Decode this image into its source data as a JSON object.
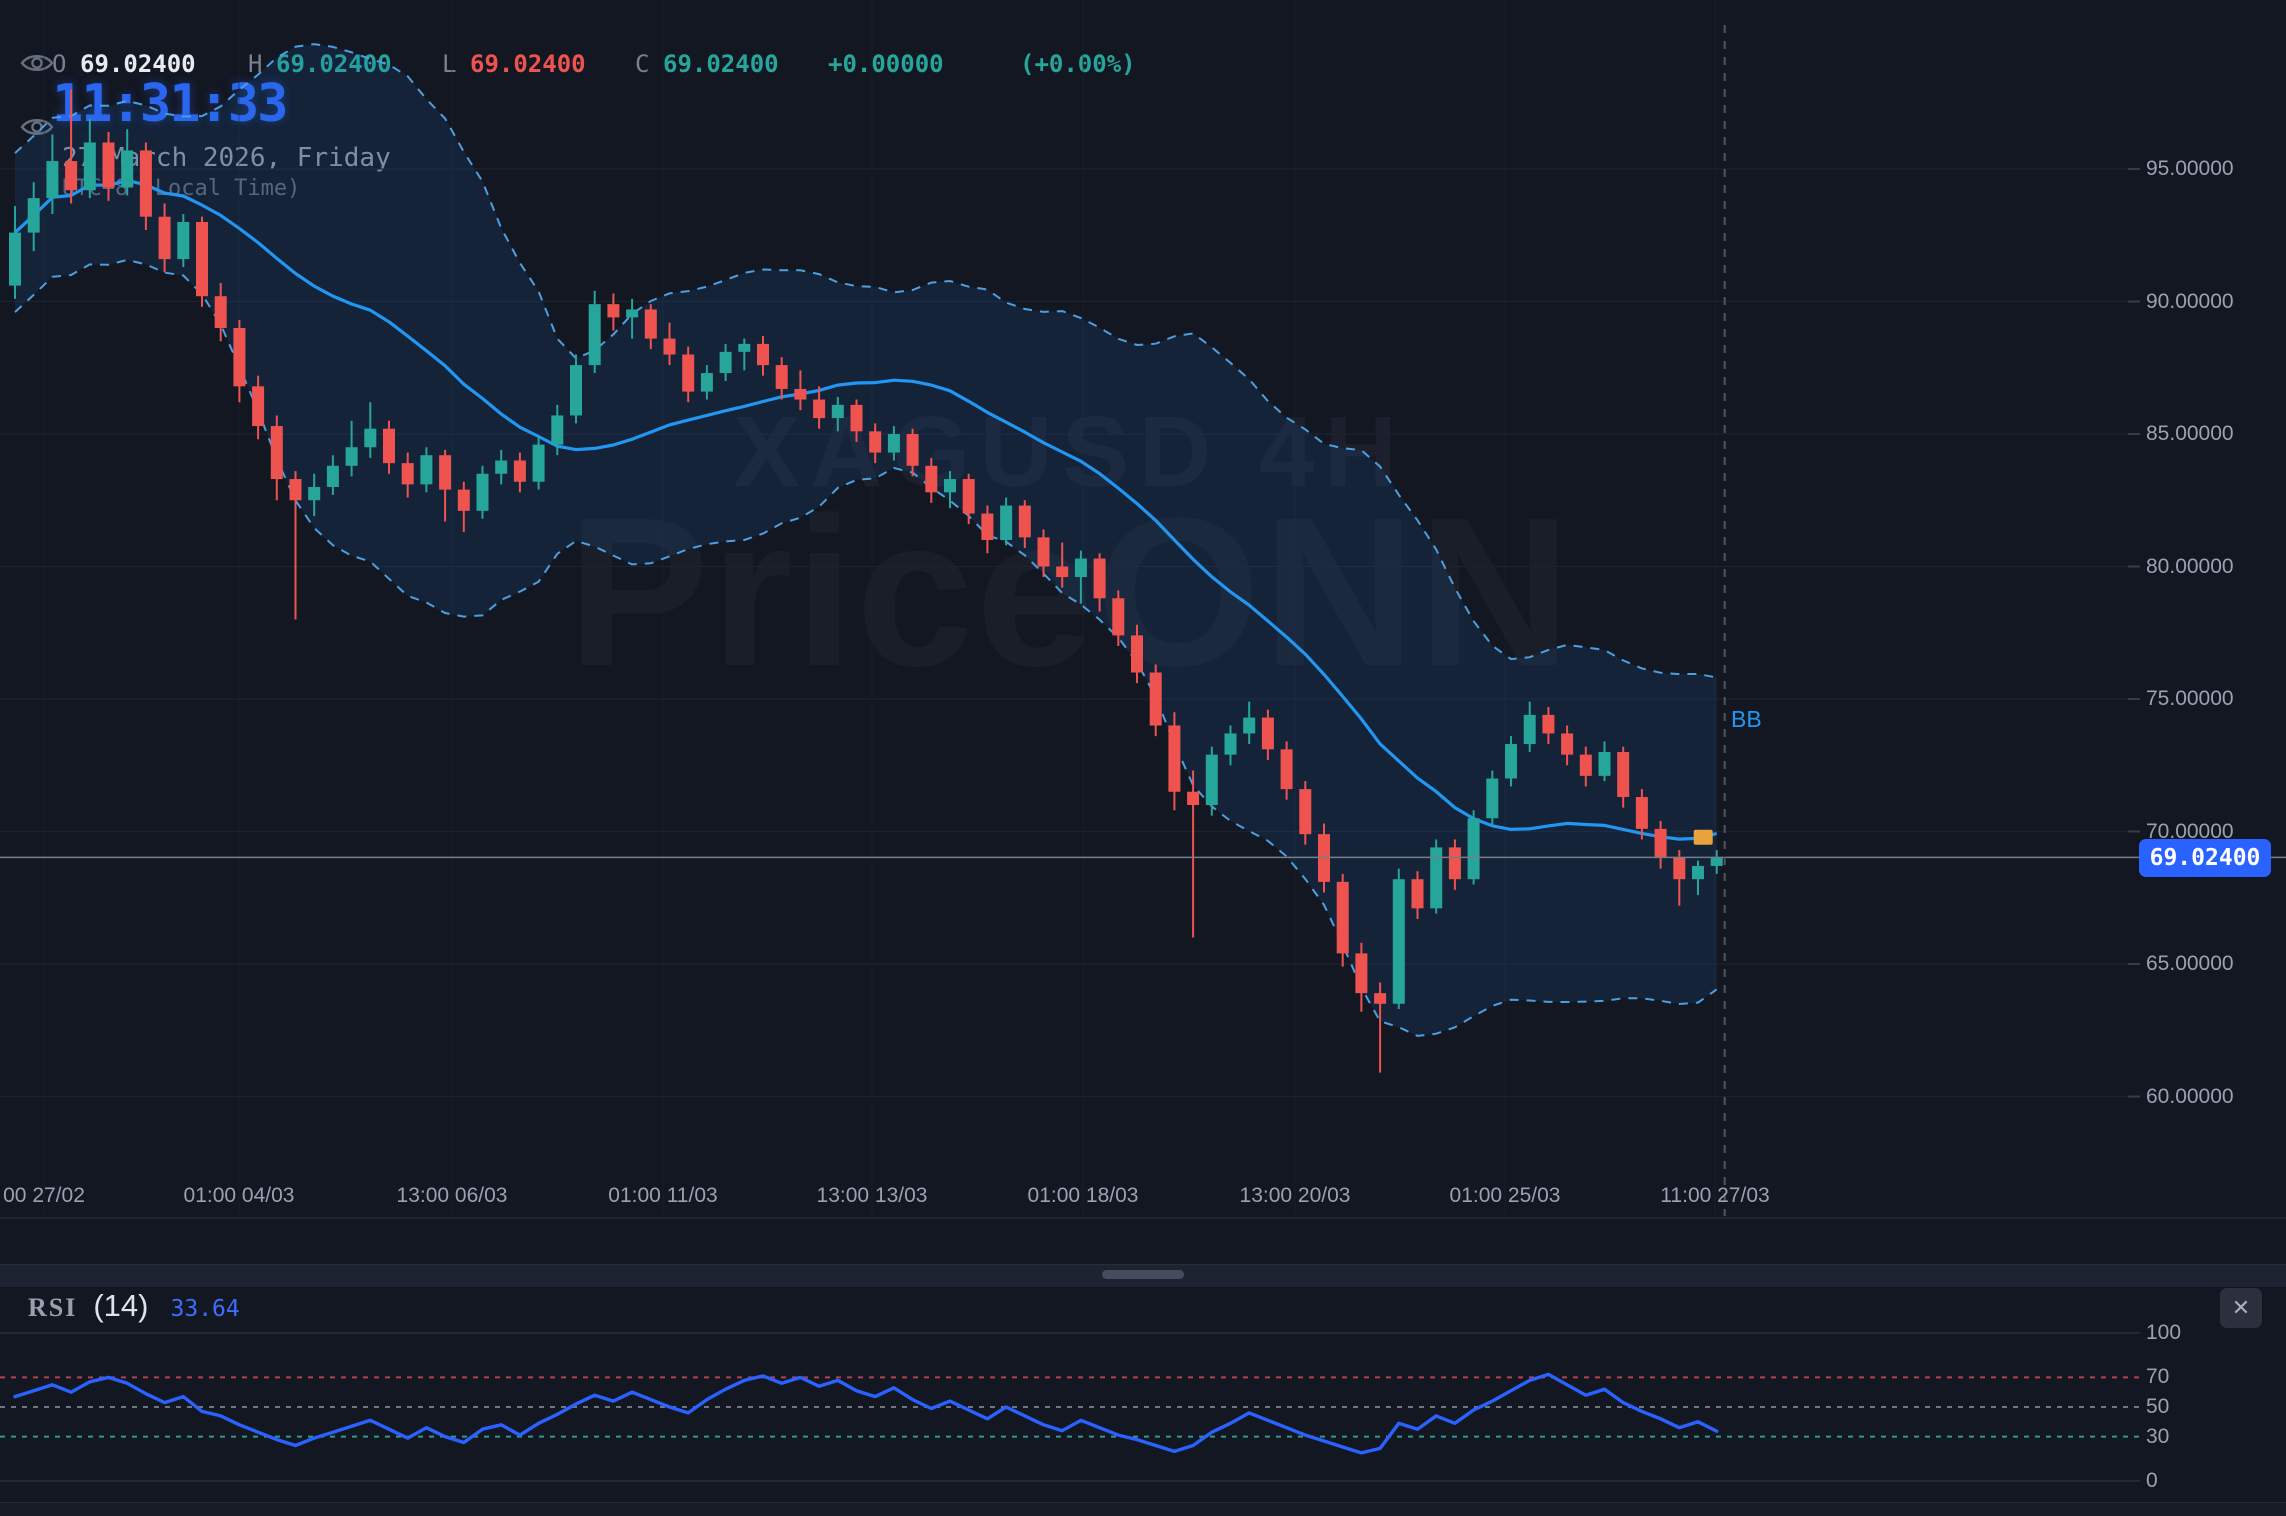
{
  "legend": {
    "open_label": "O",
    "open": "69.02400",
    "high_label": "H",
    "high": "69.02400",
    "low_label": "L",
    "low": "69.02400",
    "close_label": "C",
    "close": "69.02400",
    "change": "+0.00000",
    "change_pct": "(+0.00%)"
  },
  "clock": {
    "time": "11:31:33",
    "date": "27 March 2026, Friday",
    "timezone": "UTC+8 (Local Time)"
  },
  "watermark": {
    "symbol_tf": "XAGUSD 4H",
    "brand": "PriceONN"
  },
  "colors": {
    "background": "#131722",
    "up": "#26a69a",
    "down": "#ef5350",
    "bb_mid": "#2196f3",
    "bb_outer": "#4e9fe0",
    "bb_fill": "rgba(33,118,210,0.13)",
    "rsi_line": "#2962ff",
    "accent_badge": "#2962ff",
    "marker": "#e8a33d",
    "grid": "#1c2230",
    "axis_text": "#9aa2b1"
  },
  "chart_data": {
    "type": "candlestick",
    "symbol": "XAGUSD",
    "timeframe": "4H",
    "title": "XAGUSD 4H",
    "price_axis": {
      "ticks": [
        95,
        90,
        85,
        80,
        75,
        70,
        65,
        60
      ],
      "labels": [
        "95.00000",
        "90.00000",
        "85.00000",
        "80.00000",
        "75.00000",
        "70.00000",
        "65.00000",
        "60.00000"
      ]
    },
    "time_axis": {
      "labels": [
        "00 27/02",
        "01:00 04/03",
        "13:00 06/03",
        "01:00 11/03",
        "13:00 13/03",
        "01:00 18/03",
        "13:00 20/03",
        "01:00 25/03",
        "11:00 27/03"
      ]
    },
    "current_price": {
      "value": 69.024,
      "label": "69.02400"
    },
    "overlays": {
      "bollinger": {
        "label": "BB",
        "period": 20,
        "stdev": 2
      },
      "order_marker": {
        "price": 69.8,
        "color": "#e8a33d"
      }
    },
    "ohlc": [
      [
        90.6,
        93.6,
        90.1,
        92.6
      ],
      [
        92.6,
        94.5,
        91.9,
        93.9
      ],
      [
        93.9,
        96.3,
        93.3,
        95.3
      ],
      [
        95.3,
        98.0,
        93.7,
        94.2
      ],
      [
        94.2,
        96.9,
        93.9,
        96.0
      ],
      [
        96.0,
        96.4,
        93.8,
        94.3
      ],
      [
        94.3,
        96.5,
        94.0,
        95.7
      ],
      [
        95.7,
        96.0,
        92.7,
        93.2
      ],
      [
        93.2,
        93.7,
        91.1,
        91.6
      ],
      [
        91.6,
        93.3,
        91.3,
        93.0
      ],
      [
        93.0,
        93.2,
        89.8,
        90.2
      ],
      [
        90.2,
        90.7,
        88.5,
        89.0
      ],
      [
        89.0,
        89.3,
        86.2,
        86.8
      ],
      [
        86.8,
        87.2,
        84.8,
        85.3
      ],
      [
        85.3,
        85.7,
        82.5,
        83.3
      ],
      [
        83.3,
        83.6,
        78.0,
        82.5
      ],
      [
        82.5,
        83.5,
        81.9,
        83.0
      ],
      [
        83.0,
        84.2,
        82.7,
        83.8
      ],
      [
        83.8,
        85.5,
        83.4,
        84.5
      ],
      [
        84.5,
        86.2,
        84.1,
        85.2
      ],
      [
        85.2,
        85.5,
        83.5,
        83.9
      ],
      [
        83.9,
        84.3,
        82.6,
        83.1
      ],
      [
        83.1,
        84.5,
        82.8,
        84.2
      ],
      [
        84.2,
        84.4,
        81.7,
        82.9
      ],
      [
        82.9,
        83.2,
        81.3,
        82.1
      ],
      [
        82.1,
        83.8,
        81.8,
        83.5
      ],
      [
        83.5,
        84.4,
        83.1,
        84.0
      ],
      [
        84.0,
        84.3,
        82.8,
        83.2
      ],
      [
        83.2,
        84.9,
        82.9,
        84.6
      ],
      [
        84.6,
        86.1,
        84.2,
        85.7
      ],
      [
        85.7,
        88.0,
        85.4,
        87.6
      ],
      [
        87.6,
        90.4,
        87.3,
        89.9
      ],
      [
        89.9,
        90.3,
        88.9,
        89.4
      ],
      [
        89.4,
        90.1,
        88.6,
        89.7
      ],
      [
        89.7,
        89.9,
        88.2,
        88.6
      ],
      [
        88.6,
        89.2,
        87.6,
        88.0
      ],
      [
        88.0,
        88.3,
        86.2,
        86.6
      ],
      [
        86.6,
        87.6,
        86.3,
        87.3
      ],
      [
        87.3,
        88.4,
        87.0,
        88.1
      ],
      [
        88.1,
        88.6,
        87.4,
        88.4
      ],
      [
        88.4,
        88.7,
        87.2,
        87.6
      ],
      [
        87.6,
        87.9,
        86.3,
        86.7
      ],
      [
        86.7,
        87.4,
        85.9,
        86.3
      ],
      [
        86.3,
        86.8,
        85.2,
        85.6
      ],
      [
        85.6,
        86.4,
        85.1,
        86.1
      ],
      [
        86.1,
        86.3,
        84.7,
        85.1
      ],
      [
        85.1,
        85.4,
        83.9,
        84.3
      ],
      [
        84.3,
        85.3,
        84.0,
        85.0
      ],
      [
        85.0,
        85.2,
        83.4,
        83.8
      ],
      [
        83.8,
        84.1,
        82.4,
        82.8
      ],
      [
        82.8,
        83.6,
        82.2,
        83.3
      ],
      [
        83.3,
        83.5,
        81.6,
        82.0
      ],
      [
        82.0,
        82.3,
        80.5,
        81.0
      ],
      [
        81.0,
        82.6,
        80.8,
        82.3
      ],
      [
        82.3,
        82.5,
        80.7,
        81.1
      ],
      [
        81.1,
        81.4,
        79.6,
        80.0
      ],
      [
        80.0,
        80.9,
        79.2,
        79.6
      ],
      [
        79.6,
        80.6,
        78.6,
        80.3
      ],
      [
        80.3,
        80.5,
        78.3,
        78.8
      ],
      [
        78.8,
        79.1,
        77.0,
        77.4
      ],
      [
        77.4,
        77.8,
        75.6,
        76.0
      ],
      [
        76.0,
        76.3,
        73.6,
        74.0
      ],
      [
        74.0,
        74.5,
        70.8,
        71.5
      ],
      [
        71.5,
        72.3,
        66.0,
        71.0
      ],
      [
        71.0,
        73.2,
        70.6,
        72.9
      ],
      [
        72.9,
        74.0,
        72.5,
        73.7
      ],
      [
        73.7,
        74.9,
        73.3,
        74.3
      ],
      [
        74.3,
        74.6,
        72.7,
        73.1
      ],
      [
        73.1,
        73.4,
        71.2,
        71.6
      ],
      [
        71.6,
        71.9,
        69.5,
        69.9
      ],
      [
        69.9,
        70.3,
        67.7,
        68.1
      ],
      [
        68.1,
        68.4,
        64.9,
        65.4
      ],
      [
        65.4,
        65.8,
        63.2,
        63.9
      ],
      [
        63.9,
        64.3,
        60.9,
        63.5
      ],
      [
        63.5,
        68.6,
        63.3,
        68.2
      ],
      [
        68.2,
        68.5,
        66.7,
        67.1
      ],
      [
        67.1,
        69.7,
        66.9,
        69.4
      ],
      [
        69.4,
        69.7,
        67.8,
        68.2
      ],
      [
        68.2,
        70.8,
        68.0,
        70.5
      ],
      [
        70.5,
        72.3,
        70.2,
        72.0
      ],
      [
        72.0,
        73.6,
        71.7,
        73.3
      ],
      [
        73.3,
        74.9,
        73.0,
        74.4
      ],
      [
        74.4,
        74.7,
        73.3,
        73.7
      ],
      [
        73.7,
        74.0,
        72.5,
        72.9
      ],
      [
        72.9,
        73.2,
        71.7,
        72.1
      ],
      [
        72.1,
        73.4,
        71.9,
        73.0
      ],
      [
        73.0,
        73.2,
        70.9,
        71.3
      ],
      [
        71.3,
        71.6,
        69.7,
        70.1
      ],
      [
        70.1,
        70.4,
        68.6,
        69.0
      ],
      [
        69.0,
        69.3,
        67.2,
        68.2
      ],
      [
        68.2,
        68.9,
        67.6,
        68.7
      ],
      [
        68.7,
        69.3,
        68.4,
        69.02
      ]
    ],
    "rsi": {
      "title": "RSI",
      "period_label": "(14)",
      "value_label": "33.64",
      "value": 33.64,
      "levels": [
        100,
        70,
        50,
        30,
        0
      ],
      "level_labels": [
        "100",
        "70",
        "50",
        "30",
        "0"
      ],
      "values": [
        57,
        61,
        65,
        60,
        67,
        70,
        66,
        59,
        53,
        57,
        47,
        44,
        38,
        33,
        28,
        24,
        29,
        33,
        37,
        41,
        35,
        29,
        36,
        30,
        26,
        35,
        38,
        31,
        39,
        45,
        52,
        58,
        54,
        60,
        55,
        50,
        46,
        55,
        62,
        68,
        71,
        66,
        70,
        64,
        68,
        61,
        57,
        63,
        55,
        49,
        54,
        48,
        42,
        50,
        44,
        38,
        34,
        41,
        36,
        31,
        28,
        24,
        20,
        24,
        33,
        39,
        46,
        41,
        36,
        31,
        27,
        23,
        19,
        22,
        39,
        35,
        44,
        39,
        48,
        54,
        61,
        68,
        72,
        65,
        58,
        62,
        53,
        47,
        42,
        36,
        40,
        33.64
      ]
    }
  },
  "rsi_panel": {
    "close_icon": "✕"
  }
}
